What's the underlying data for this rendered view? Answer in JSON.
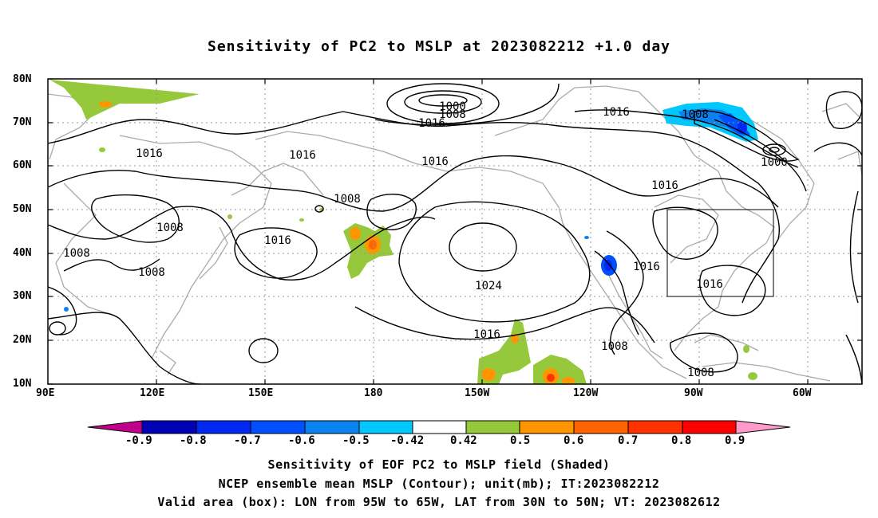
{
  "title": "Sensitivity of PC2 to MSLP at 2023082212 +1.0 day",
  "map": {
    "lat_labels": [
      "80N",
      "70N",
      "60N",
      "50N",
      "40N",
      "30N",
      "20N",
      "10N"
    ],
    "lon_labels": [
      "90E",
      "120E",
      "150E",
      "180",
      "150W",
      "120W",
      "90W",
      "60W"
    ],
    "extent": {
      "lon_min_east": 90,
      "lon_max_east": 315,
      "lat_min": 10,
      "lat_max": 80
    },
    "contour_labels": [
      "1000",
      "1008",
      "1016",
      "1016",
      "1016",
      "1016",
      "1016",
      "1016",
      "1008",
      "1008",
      "1008",
      "1008",
      "1016",
      "1024",
      "1016",
      "1016",
      "1008",
      "1008",
      "1016",
      "1008",
      "1016",
      "1000"
    ],
    "valid_box": {
      "lon": [
        -95,
        -65
      ],
      "lat": [
        30,
        50
      ]
    },
    "colors": {
      "grid": "#999999",
      "coast": "#aaaaaa",
      "contour": "#000000"
    }
  },
  "colorbar": {
    "labels": [
      "-0.9",
      "-0.8",
      "-0.7",
      "-0.6",
      "-0.5",
      "-0.42",
      "0.42",
      "0.5",
      "0.6",
      "0.7",
      "0.8",
      "0.9"
    ],
    "colors": [
      "#c0008c",
      "#0000b4",
      "#0028f0",
      "#0050ff",
      "#0a82f0",
      "#00c8ff",
      "#ffffff",
      "#96c83c",
      "#ff9600",
      "#ff6400",
      "#ff3200",
      "#ff0000",
      "#ff9bc8"
    ]
  },
  "captions": [
    "Sensitivity of EOF PC2 to MSLP field (Shaded)",
    "NCEP ensemble mean MSLP (Contour); unit(mb); IT:2023082212",
    "Valid area (box): LON from 95W to 65W, LAT from 30N to 50N; VT: 2023082612"
  ]
}
